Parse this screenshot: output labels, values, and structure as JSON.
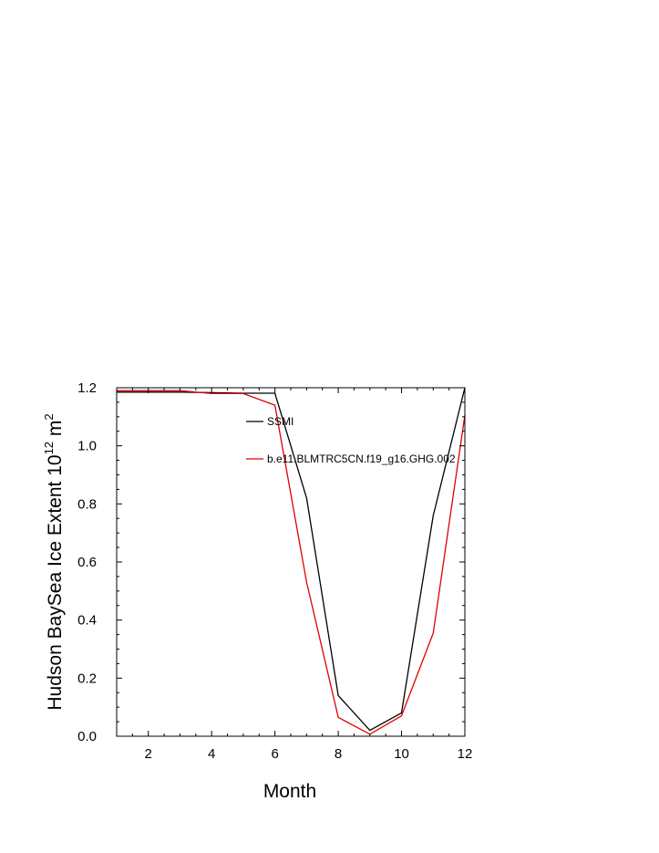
{
  "chart_data": {
    "type": "line",
    "xlabel": "Month",
    "ylabel": "Hudson BaySea Ice Extent 10",
    "ylabel_exponent": "12",
    "ylabel_unit": " m",
    "ylabel_unit_exponent": "2",
    "xlim": [
      1,
      12
    ],
    "ylim": [
      0.0,
      1.2
    ],
    "x_ticks": [
      2,
      4,
      6,
      8,
      10,
      12
    ],
    "x_tick_labels": [
      "2",
      "4",
      "6",
      "8",
      "10",
      "12"
    ],
    "y_ticks": [
      0.0,
      0.2,
      0.4,
      0.6,
      0.8,
      1.0,
      1.2
    ],
    "y_tick_labels": [
      "0.0",
      "0.2",
      "0.4",
      "0.6",
      "0.8",
      "1.0",
      "1.2"
    ],
    "grid": false,
    "legend_position": "inside top-right",
    "x": [
      1,
      2,
      3,
      4,
      5,
      6,
      7,
      8,
      9,
      10,
      11,
      12
    ],
    "series": [
      {
        "name": "SSMI",
        "color": "#000000",
        "values": [
          1.185,
          1.185,
          1.185,
          1.183,
          1.181,
          1.181,
          0.82,
          0.14,
          0.02,
          0.08,
          0.76,
          1.2
        ]
      },
      {
        "name": "b.e11.BLMTRC5CN.f19_g16.GHG.002",
        "color": "#e00000",
        "values": [
          1.19,
          1.19,
          1.19,
          1.18,
          1.18,
          1.14,
          0.53,
          0.065,
          0.007,
          0.07,
          0.355,
          1.105
        ]
      }
    ]
  }
}
